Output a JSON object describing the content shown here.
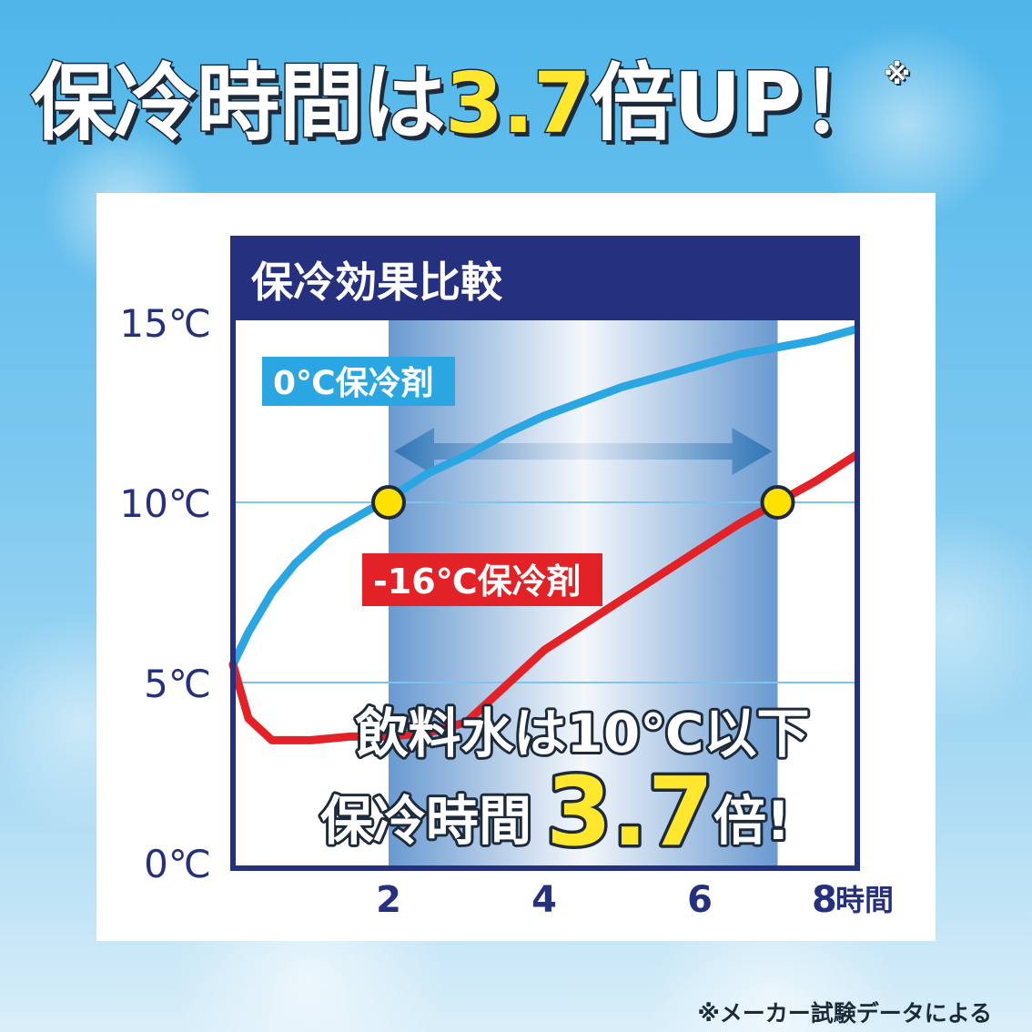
{
  "headline": {
    "prefix": "保冷時間は",
    "number": "3.7",
    "suffix": "倍UP！",
    "note_mark": "※"
  },
  "footnote": "※メーカー試験データによる",
  "colors": {
    "navy": "#25307e",
    "blue_series": "#2aa7e3",
    "red_series": "#e32227",
    "yellow_marker": "#ffe100",
    "highlight": "#ffe72e"
  },
  "chart_data": {
    "type": "line",
    "title": "保冷効果比較",
    "xlabel": "",
    "ylabel": "",
    "x_unit_label": "時間",
    "xlim": [
      0,
      8
    ],
    "ylim": [
      0,
      15
    ],
    "x_ticks": [
      {
        "value": 2,
        "label": "2"
      },
      {
        "value": 4,
        "label": "4"
      },
      {
        "value": 6,
        "label": "6"
      },
      {
        "value": 8,
        "label": "8"
      }
    ],
    "y_ticks": [
      {
        "value": 0,
        "label": "0℃"
      },
      {
        "value": 5,
        "label": "5℃"
      },
      {
        "value": 10,
        "label": "10℃"
      },
      {
        "value": 15,
        "label": "15℃"
      }
    ],
    "grid": {
      "y_values": [
        5,
        10
      ]
    },
    "highlight_band": {
      "x_start": 2,
      "x_end": 7
    },
    "series": [
      {
        "name": "0℃保冷剤",
        "color": "#2aa7e3",
        "x": [
          0,
          0.2,
          0.5,
          0.8,
          1.2,
          1.6,
          2,
          2.5,
          3,
          3.5,
          4,
          4.5,
          5,
          5.5,
          6,
          6.5,
          7,
          7.5,
          8
        ],
        "y": [
          5.5,
          6.4,
          7.5,
          8.3,
          9.1,
          9.6,
          10.1,
          10.8,
          11.3,
          11.9,
          12.4,
          12.8,
          13.2,
          13.5,
          13.8,
          14.1,
          14.3,
          14.5,
          14.8
        ]
      },
      {
        "name": "-16℃保冷剤",
        "color": "#e32227",
        "x": [
          0,
          0.2,
          0.5,
          1,
          1.5,
          2,
          2.5,
          3,
          3.5,
          4,
          4.5,
          5,
          5.5,
          6,
          6.5,
          7,
          7.5,
          8
        ],
        "y": [
          5.5,
          4.0,
          3.4,
          3.4,
          3.5,
          3.5,
          3.6,
          3.9,
          4.9,
          5.9,
          6.6,
          7.3,
          8.0,
          8.7,
          9.4,
          10.0,
          10.6,
          11.3
        ]
      }
    ],
    "markers": [
      {
        "x": 2,
        "y": 10
      },
      {
        "x": 7,
        "y": 10
      }
    ],
    "series_labels": [
      {
        "text": "0℃保冷剤",
        "series": 0
      },
      {
        "text": "-16℃保冷剤",
        "series": 1
      }
    ],
    "annotation": {
      "line1": "飲料水は10℃以下",
      "line2_prefix": "保冷時間",
      "line2_number": "3.7",
      "line2_suffix": "倍!"
    }
  }
}
